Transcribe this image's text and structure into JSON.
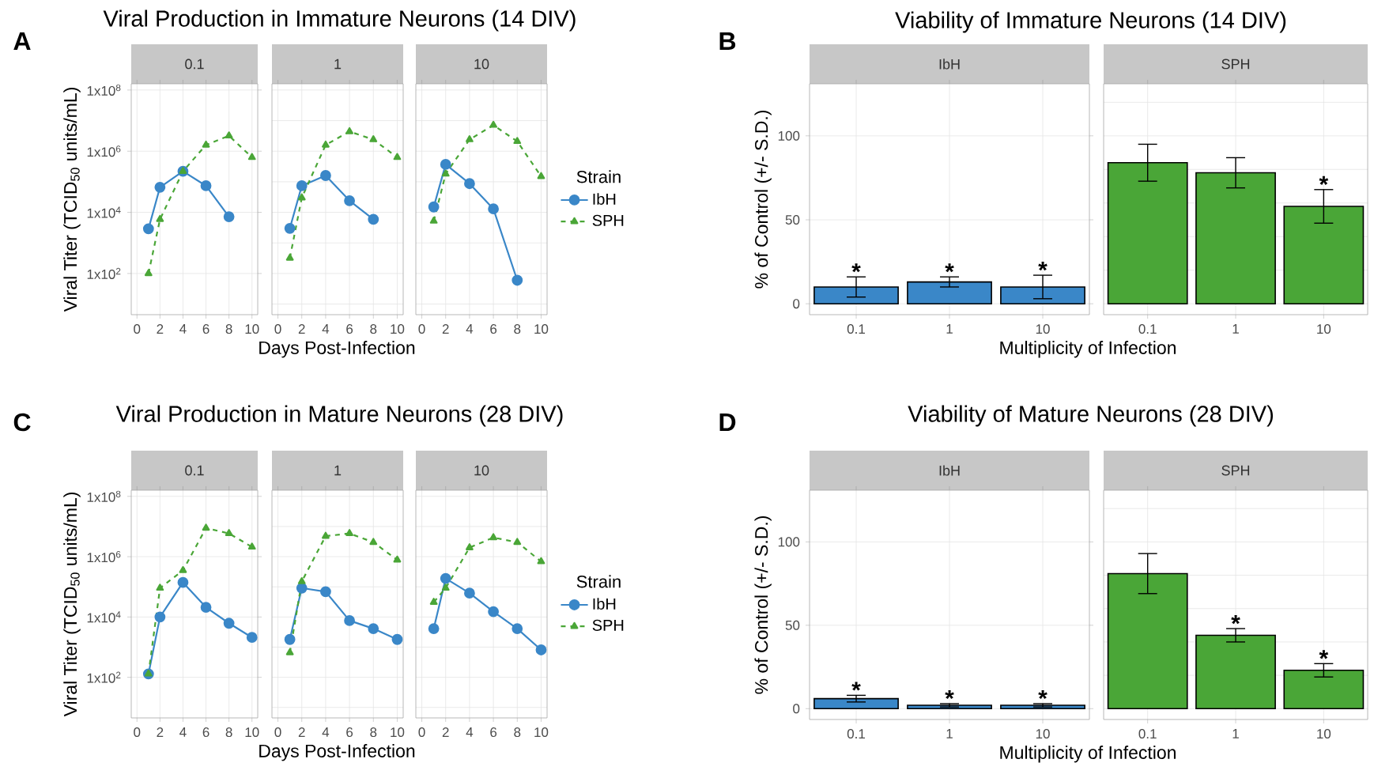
{
  "chart_data": [
    {
      "type": "line",
      "title": "Viral Production in Immature Neurons (14 DIV)",
      "subtitle": "0.1",
      "ylabel": "Viral Titer (TCID$_{50}$ units/mL)",
      "annotations": [
        "A"
      ],
      "log": "y",
      "grid": true,
      "xlim": [
        -0.5,
        10.5
      ],
      "xticks": [
        0,
        2,
        4,
        6,
        8,
        10
      ],
      "ylim": [
        4.5,
        160000000
      ],
      "yticks": [
        {
          "value": 100,
          "label": "1x10$^{2}$"
        },
        {
          "value": 10000,
          "label": "1x10$^{4}$"
        },
        {
          "value": 1000000,
          "label": "1x10$^{6}$"
        },
        {
          "value": 100000000,
          "label": "1x10$^{8}$"
        }
      ],
      "series": [
        {
          "color": "#3a87c8",
          "marker": "circle",
          "line_style": "solid",
          "x": [
            1,
            2,
            4,
            6,
            8
          ],
          "values": [
            2900,
            66000,
            220000,
            74000,
            7200
          ]
        },
        {
          "color": "#4aa637",
          "marker": "triangle",
          "line_style": "dashed",
          "x": [
            1,
            2,
            4,
            6,
            8,
            10
          ],
          "values": [
            100,
            5900,
            220000,
            1600000,
            3200000,
            630000
          ]
        }
      ]
    },
    {
      "type": "line",
      "subtitle": "1",
      "xlabel": "Days Post-Infection",
      "tick_labels": "x",
      "log": "y",
      "grid": true,
      "xlim": [
        -0.5,
        10.5
      ],
      "xticks": [
        0,
        2,
        4,
        6,
        8,
        10
      ],
      "ylim": [
        4.5,
        160000000
      ],
      "series": [
        {
          "color": "#3a87c8",
          "marker": "circle",
          "line_style": "solid",
          "x": [
            1,
            2,
            4,
            6,
            8
          ],
          "values": [
            3000,
            74000,
            160000,
            24000,
            5900
          ]
        },
        {
          "color": "#4aa637",
          "marker": "triangle",
          "line_style": "dashed",
          "x": [
            1,
            2,
            4,
            6,
            8,
            10
          ],
          "values": [
            320,
            30000,
            1600000,
            4400000,
            2400000,
            630000
          ]
        }
      ]
    },
    {
      "type": "line",
      "subtitle": "10",
      "legend_title": "Strain",
      "legend": "right",
      "tick_labels": "x",
      "log": "y",
      "grid": true,
      "xlim": [
        -0.5,
        10.5
      ],
      "xticks": [
        0,
        2,
        4,
        6,
        8,
        10
      ],
      "ylim": [
        4.5,
        160000000
      ],
      "series": [
        {
          "name": "IbH",
          "color": "#3a87c8",
          "marker": "circle",
          "line_style": "solid",
          "x": [
            1,
            2,
            4,
            6,
            8
          ],
          "values": [
            15000,
            370000,
            87000,
            13000,
            60
          ]
        },
        {
          "name": "SPH",
          "color": "#4aa637",
          "marker": "triangle",
          "line_style": "dashed",
          "x": [
            1,
            2,
            4,
            6,
            8,
            10
          ],
          "values": [
            5200,
            180000,
            2400000,
            7100000,
            2100000,
            150000
          ]
        }
      ]
    },
    {
      "type": "bar",
      "title": "Viability of Immature Neurons (14 DIV)",
      "subtitle": "IbH",
      "ylabel": "% of Control (+/- S.D.)",
      "xlabel": "Multiplicity of Infection",
      "grid": true,
      "categories": [
        "0.1",
        "1",
        "10"
      ],
      "ylim": [
        -6.5,
        131
      ],
      "yticks": [
        0,
        50,
        100
      ],
      "color": "#3a87c8",
      "values": [
        10,
        13,
        10
      ],
      "errors": [
        6,
        3,
        7
      ],
      "annotations": [
        "B",
        {
          "text": "*",
          "x": "0.1",
          "y": 10
        },
        {
          "text": "*",
          "x": "1",
          "y": 13
        },
        {
          "text": "*",
          "x": "10",
          "y": 10
        }
      ]
    },
    {
      "type": "bar",
      "subtitle": "SPH",
      "tick_labels": "x",
      "grid": true,
      "categories": [
        "0.1",
        "1",
        "10"
      ],
      "ylim": [
        -6.5,
        131
      ],
      "color": "#4aa637",
      "values": [
        84,
        78,
        58
      ],
      "errors": [
        11,
        9,
        10
      ],
      "annotations": [
        {
          "text": "*",
          "x": "10",
          "y": 58
        }
      ]
    },
    {
      "type": "line",
      "title": "Viral Production in Mature Neurons (28 DIV)",
      "subtitle": "0.1",
      "ylabel": "Viral Titer (TCID$_{50}$ units/mL)",
      "annotations": [
        "C"
      ],
      "log": "y",
      "grid": true,
      "xlim": [
        -0.5,
        10.5
      ],
      "xticks": [
        0,
        2,
        4,
        6,
        8,
        10
      ],
      "ylim": [
        4.5,
        160000000
      ],
      "yticks": [
        {
          "value": 100,
          "label": "1x10$^{2}$"
        },
        {
          "value": 10000,
          "label": "1x10$^{4}$"
        },
        {
          "value": 1000000,
          "label": "1x10$^{6}$"
        },
        {
          "value": 100000000,
          "label": "1x10$^{8}$"
        }
      ],
      "series": [
        {
          "color": "#3a87c8",
          "marker": "circle",
          "line_style": "solid",
          "x": [
            1,
            2,
            4,
            6,
            8,
            10
          ],
          "values": [
            130,
            10000,
            140000,
            21000,
            6200,
            2100
          ]
        },
        {
          "color": "#4aa637",
          "marker": "triangle",
          "line_style": "dashed",
          "x": [
            1,
            2,
            4,
            6,
            8,
            10
          ],
          "values": [
            130,
            91000,
            350000,
            8900000,
            5900000,
            2100000
          ]
        }
      ]
    },
    {
      "type": "line",
      "subtitle": "1",
      "xlabel": "Days Post-Infection",
      "tick_labels": "x",
      "log": "y",
      "grid": true,
      "xlim": [
        -0.5,
        10.5
      ],
      "xticks": [
        0,
        2,
        4,
        6,
        8,
        10
      ],
      "ylim": [
        4.5,
        160000000
      ],
      "series": [
        {
          "color": "#3a87c8",
          "marker": "circle",
          "line_style": "solid",
          "x": [
            1,
            2,
            4,
            6,
            8,
            10
          ],
          "values": [
            1800,
            91000,
            69000,
            7600,
            4100,
            1800
          ]
        },
        {
          "color": "#4aa637",
          "marker": "triangle",
          "line_style": "dashed",
          "x": [
            1,
            2,
            4,
            6,
            8,
            10
          ],
          "values": [
            660,
            150000,
            4800000,
            5900000,
            3000000,
            780000
          ]
        }
      ]
    },
    {
      "type": "line",
      "subtitle": "10",
      "legend_title": "Strain",
      "legend": "right",
      "tick_labels": "x",
      "log": "y",
      "grid": true,
      "xlim": [
        -0.5,
        10.5
      ],
      "xticks": [
        0,
        2,
        4,
        6,
        8,
        10
      ],
      "ylim": [
        4.5,
        160000000
      ],
      "series": [
        {
          "name": "IbH",
          "color": "#3a87c8",
          "marker": "circle",
          "line_style": "solid",
          "x": [
            1,
            2,
            4,
            6,
            8,
            10
          ],
          "values": [
            4100,
            190000,
            62000,
            15000,
            4100,
            810
          ]
        },
        {
          "name": "SPH",
          "color": "#4aa637",
          "marker": "triangle",
          "line_style": "dashed",
          "x": [
            1,
            2,
            4,
            6,
            8,
            10
          ],
          "values": [
            31000,
            91000,
            2000000,
            4300000,
            3000000,
            690000
          ]
        }
      ]
    },
    {
      "type": "bar",
      "title": "Viability of Mature Neurons (28 DIV)",
      "subtitle": "IbH",
      "ylabel": "% of Control (+/- S.D.)",
      "xlabel": "Multiplicity of Infection",
      "grid": true,
      "categories": [
        "0.1",
        "1",
        "10"
      ],
      "ylim": [
        -6.5,
        131
      ],
      "yticks": [
        0,
        50,
        100
      ],
      "color": "#3a87c8",
      "values": [
        6,
        2,
        2
      ],
      "errors": [
        2,
        1,
        1
      ],
      "annotations": [
        "D",
        {
          "text": "*",
          "x": "0.1",
          "y": 6
        },
        {
          "text": "*",
          "x": "1",
          "y": 2
        },
        {
          "text": "*",
          "x": "10",
          "y": 2
        }
      ]
    },
    {
      "type": "bar",
      "subtitle": "SPH",
      "tick_labels": "x",
      "grid": true,
      "categories": [
        "0.1",
        "1",
        "10"
      ],
      "ylim": [
        -6.5,
        131
      ],
      "color": "#4aa637",
      "values": [
        81,
        44,
        23
      ],
      "errors": [
        12,
        4,
        4
      ],
      "annotations": [
        {
          "text": "*",
          "x": "1",
          "y": 44
        },
        {
          "text": "*",
          "x": "10",
          "y": 23
        }
      ]
    }
  ]
}
